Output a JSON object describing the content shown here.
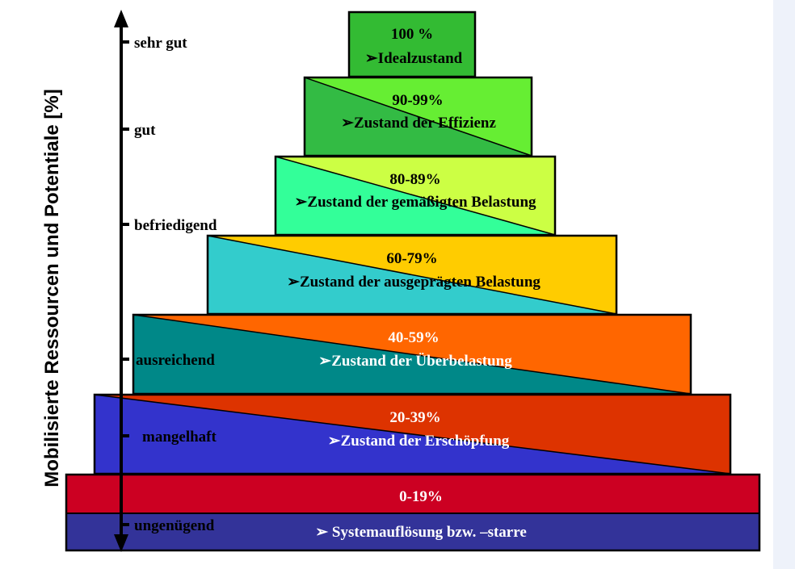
{
  "axis_label": "Mobilisierte Ressourcen und Potentiale [%]",
  "axis_ticks": [
    "sehr gut",
    "gut",
    "befriedigend",
    "ausreichend",
    "mangelhaft",
    "ungenügend"
  ],
  "levels": [
    {
      "range": "100 %",
      "description": "➢Idealzustand"
    },
    {
      "range": "90-99%",
      "description": "➢Zustand der Effizienz"
    },
    {
      "range": "80-89%",
      "description": "➢Zustand der gemäßigten Belastung"
    },
    {
      "range": "60-79%",
      "description": "➢Zustand der ausgeprägten Belastung"
    },
    {
      "range": "40-59%",
      "description": "➢Zustand der Überbelastung"
    },
    {
      "range": "20-39%",
      "description": "➢Zustand der Erschöpfung"
    },
    {
      "range": "0-19%",
      "description": "➢ Systemauflösung bzw. –starre"
    }
  ]
}
